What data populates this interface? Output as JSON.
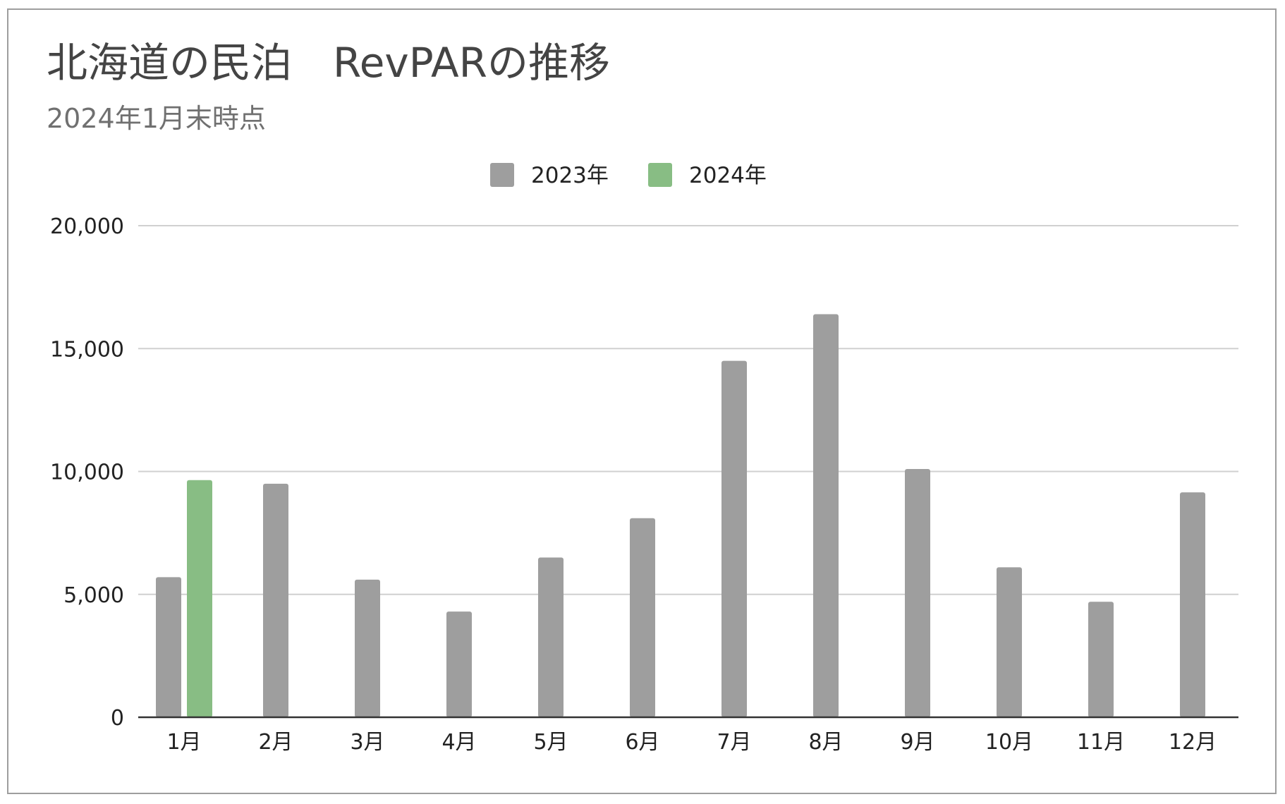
{
  "chart": {
    "title": "北海道の民泊　RevPARの推移",
    "subtitle": "2024年1月末時点"
  },
  "colors": {
    "series_2023": "#9e9e9e",
    "series_2024": "#88bd84",
    "grid": "#d0d0d0",
    "axis": "#333333",
    "frame": "#9e9e9e"
  },
  "chart_data": {
    "type": "bar",
    "title": "北海道の民泊　RevPARの推移",
    "subtitle": "2024年1月末時点",
    "xlabel": "",
    "ylabel": "",
    "categories": [
      "1月",
      "2月",
      "3月",
      "4月",
      "5月",
      "6月",
      "7月",
      "8月",
      "9月",
      "10月",
      "11月",
      "12月"
    ],
    "series": [
      {
        "name": "2023年",
        "color": "#9e9e9e",
        "values": [
          5700,
          9500,
          5600,
          4300,
          6500,
          8100,
          14500,
          16400,
          10100,
          6100,
          4700,
          9150
        ]
      },
      {
        "name": "2024年",
        "color": "#88bd84",
        "values": [
          9650,
          null,
          null,
          null,
          null,
          null,
          null,
          null,
          null,
          null,
          null,
          null
        ]
      }
    ],
    "ylim": [
      0,
      20000
    ],
    "yticks": [
      0,
      5000,
      10000,
      15000,
      20000
    ],
    "ytick_labels": [
      "0",
      "5,000",
      "10,000",
      "15,000",
      "20,000"
    ],
    "grid": true,
    "legend_position": "top-center"
  }
}
